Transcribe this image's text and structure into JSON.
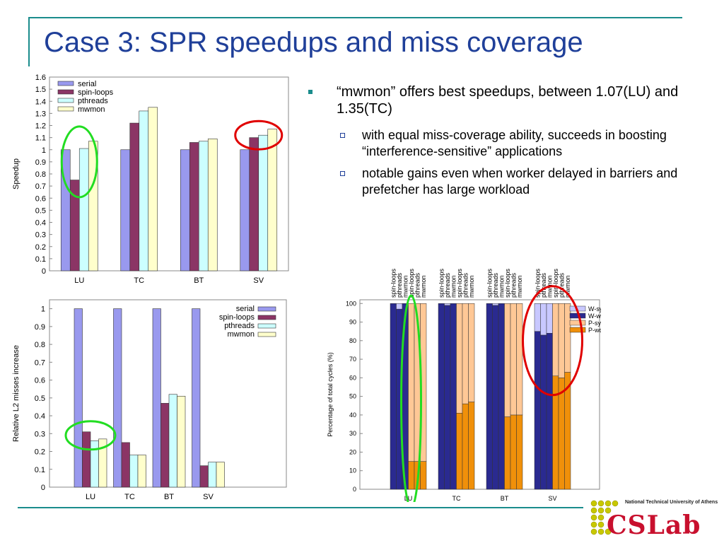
{
  "slide": {
    "title": "Case 3: SPR speedups and miss coverage",
    "bullet_main": "“mwmon” offers best speedups, between 1.07(LU) and 1.35(TC)",
    "sub_bullets": [
      "with equal miss-coverage ability, succeeds in boosting “interference-sensitive” applications",
      "notable gains even when worker delayed in barriers and prefetcher has large workload"
    ],
    "logo": {
      "title": "CSLab",
      "subtitle": "National Technical University of Athens"
    },
    "colors": {
      "title": "#1f3f99",
      "rule": "#1a8c8c",
      "annotation_green": "#22dd22",
      "annotation_red": "#e00000"
    }
  },
  "chart_data": [
    {
      "type": "bar",
      "ylabel": "Speedup",
      "categories": [
        "LU",
        "TC",
        "BT",
        "SV"
      ],
      "ylim": [
        0,
        1.6
      ],
      "yticks": [
        "0",
        "0.1",
        "0.2",
        "0.3",
        "0.4",
        "0.5",
        "0.6",
        "0.7",
        "0.8",
        "0.9",
        "1",
        "1.1",
        "1.2",
        "1.3",
        "1.4",
        "1.5",
        "1.6"
      ],
      "legend_position": "top-left",
      "series": [
        {
          "name": "serial",
          "color": "#9999ee",
          "values": [
            1.0,
            1.0,
            1.0,
            1.0
          ]
        },
        {
          "name": "spin-loops",
          "color": "#8b3565",
          "values": [
            0.75,
            1.22,
            1.06,
            1.1
          ]
        },
        {
          "name": "pthreads",
          "color": "#ccffff",
          "values": [
            1.01,
            1.32,
            1.07,
            1.12
          ]
        },
        {
          "name": "mwmon",
          "color": "#ffffcc",
          "values": [
            1.07,
            1.35,
            1.09,
            1.17
          ]
        }
      ]
    },
    {
      "type": "bar",
      "ylabel": "Relative L2 misses increase",
      "categories": [
        "LU",
        "TC",
        "BT",
        "SV"
      ],
      "ylim": [
        0,
        1
      ],
      "yticks": [
        "0",
        "0.1",
        "0.2",
        "0.3",
        "0.4",
        "0.5",
        "0.6",
        "0.7",
        "0.8",
        "0.9",
        "1"
      ],
      "legend_position": "top-right",
      "series": [
        {
          "name": "serial",
          "color": "#9999ee",
          "values": [
            1.0,
            1.0,
            1.0,
            1.0
          ]
        },
        {
          "name": "spin-loops",
          "color": "#8b3565",
          "values": [
            0.31,
            0.25,
            0.47,
            0.12
          ]
        },
        {
          "name": "pthreads",
          "color": "#ccffff",
          "values": [
            0.26,
            0.18,
            0.52,
            0.14
          ]
        },
        {
          "name": "mwmon",
          "color": "#ffffcc",
          "values": [
            0.27,
            0.18,
            0.51,
            0.14
          ]
        }
      ]
    },
    {
      "type": "bar",
      "stacked": true,
      "ylabel": "Percentage of total cycles (%)",
      "categories": [
        "LU",
        "TC",
        "BT",
        "SV"
      ],
      "bar_labels": [
        "spin-loops",
        "pthreads",
        "mwmon",
        "spin-loops",
        "pthreads",
        "mwmon"
      ],
      "ylim": [
        0,
        100
      ],
      "yticks": [
        "0",
        "10",
        "20",
        "30",
        "40",
        "50",
        "60",
        "70",
        "80",
        "90",
        "100"
      ],
      "legend_position": "right",
      "series": [
        {
          "name": "W-synch",
          "color": "#c8c8ff"
        },
        {
          "name": "W-work",
          "color": "#2a2a90"
        },
        {
          "name": "P-synch",
          "color": "#ffc896"
        },
        {
          "name": "P-work",
          "color": "#f0900a"
        }
      ],
      "groups": [
        {
          "category": "LU",
          "bars": [
            {
              "W-work": 100,
              "W-synch": 0
            },
            {
              "W-work": 97,
              "W-synch": 3
            },
            {
              "W-work": 100,
              "W-synch": 0
            },
            {
              "P-work": 15,
              "P-synch": 85
            },
            {
              "P-work": 15,
              "P-synch": 85
            },
            {
              "P-work": 15,
              "P-synch": 85
            }
          ]
        },
        {
          "category": "TC",
          "bars": [
            {
              "W-work": 100,
              "W-synch": 0
            },
            {
              "W-work": 99,
              "W-synch": 1
            },
            {
              "W-work": 100,
              "W-synch": 0
            },
            {
              "P-work": 41,
              "P-synch": 59
            },
            {
              "P-work": 46,
              "P-synch": 54
            },
            {
              "P-work": 47,
              "P-synch": 53
            }
          ]
        },
        {
          "category": "BT",
          "bars": [
            {
              "W-work": 100,
              "W-synch": 0
            },
            {
              "W-work": 99,
              "W-synch": 1
            },
            {
              "W-work": 100,
              "W-synch": 0
            },
            {
              "P-work": 39,
              "P-synch": 61
            },
            {
              "P-work": 40,
              "P-synch": 60
            },
            {
              "P-work": 40,
              "P-synch": 60
            }
          ]
        },
        {
          "category": "SV",
          "bars": [
            {
              "W-work": 85,
              "W-synch": 15
            },
            {
              "W-work": 83,
              "W-synch": 17
            },
            {
              "W-work": 84,
              "W-synch": 16
            },
            {
              "P-work": 61,
              "P-synch": 39
            },
            {
              "P-work": 60,
              "P-synch": 40
            },
            {
              "P-work": 63,
              "P-synch": 37
            }
          ]
        }
      ]
    }
  ]
}
